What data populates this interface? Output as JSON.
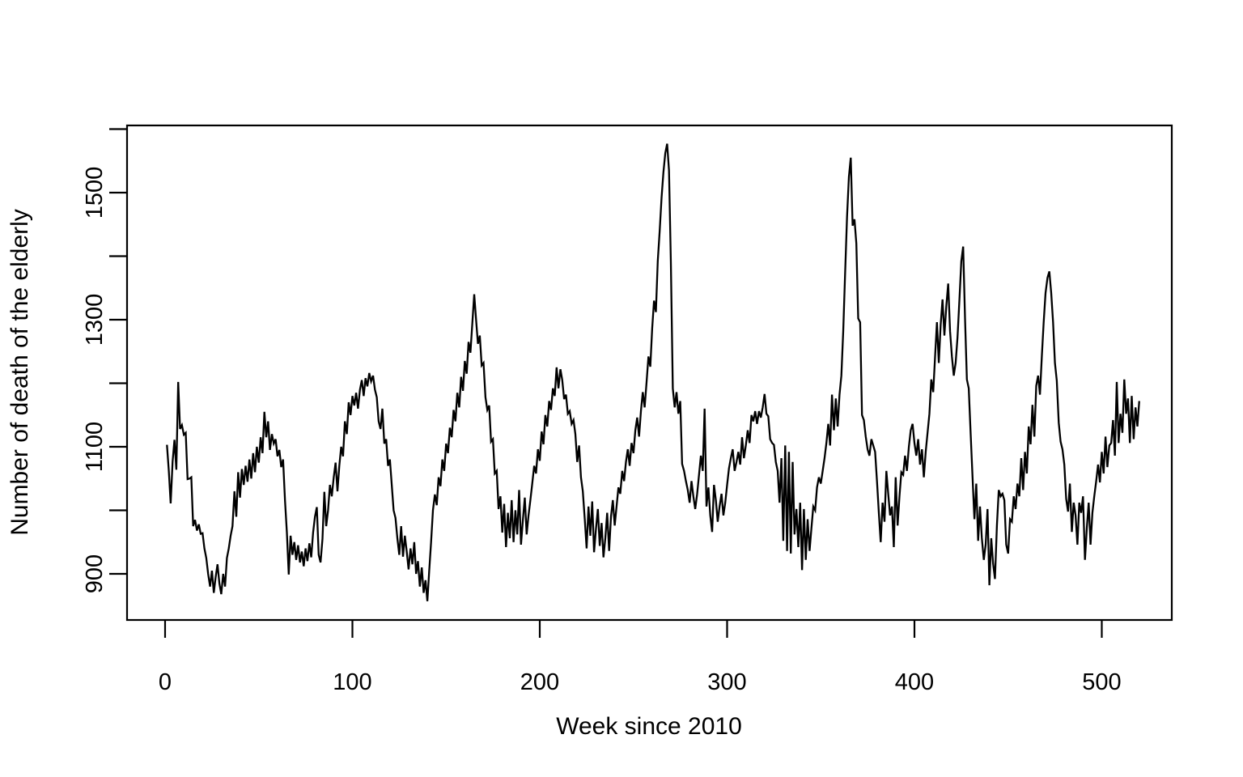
{
  "figure": {
    "background": "#ffffff",
    "line_color": "#000000",
    "axis_color": "#000000",
    "text_color": "#000000"
  },
  "chart_data": {
    "type": "line",
    "title": "",
    "xlabel": "Week since 2010",
    "ylabel": "Number of death of the elderly",
    "legend": "none",
    "grid": "off",
    "xlim": [
      -20,
      541
    ],
    "ylim": [
      824,
      1595
    ],
    "x_tick_values": [
      0,
      100,
      200,
      300,
      400,
      500
    ],
    "x_tick_labels": [
      "0",
      "100",
      "200",
      "300",
      "400",
      "500"
    ],
    "y_tick_values": [
      900,
      1000,
      1100,
      1200,
      1300,
      1400,
      1500,
      1600
    ],
    "y_tick_labels": [
      "900",
      "",
      "1100",
      "",
      "1300",
      "",
      "1500",
      ""
    ],
    "x_start_week": 1,
    "x_step": 1,
    "values": [
      1103,
      1062,
      1011,
      1077,
      1111,
      1064,
      1202,
      1128,
      1134,
      1119,
      1122,
      1049,
      1050,
      1052,
      975,
      985,
      968,
      978,
      963,
      964,
      940,
      925,
      900,
      880,
      905,
      870,
      895,
      915,
      885,
      868,
      900,
      880,
      925,
      940,
      960,
      975,
      1030,
      990,
      1060,
      1020,
      1065,
      1040,
      1070,
      1045,
      1080,
      1050,
      1090,
      1060,
      1100,
      1075,
      1115,
      1090,
      1155,
      1115,
      1140,
      1095,
      1120,
      1105,
      1112,
      1085,
      1095,
      1068,
      1080,
      1015,
      965,
      899,
      960,
      930,
      950,
      922,
      945,
      918,
      935,
      912,
      940,
      920,
      948,
      926,
      965,
      990,
      1005,
      930,
      918,
      955,
      1029,
      975,
      1000,
      1040,
      1022,
      1052,
      1075,
      1030,
      1070,
      1100,
      1085,
      1140,
      1120,
      1170,
      1150,
      1180,
      1165,
      1185,
      1160,
      1190,
      1205,
      1180,
      1208,
      1195,
      1216,
      1203,
      1212,
      1190,
      1178,
      1140,
      1128,
      1160,
      1105,
      1112,
      1070,
      1080,
      1040,
      1000,
      988,
      955,
      930,
      975,
      927,
      960,
      935,
      907,
      940,
      915,
      950,
      900,
      920,
      880,
      910,
      870,
      890,
      857,
      905,
      950,
      1000,
      1025,
      1008,
      1052,
      1038,
      1080,
      1062,
      1105,
      1090,
      1130,
      1115,
      1158,
      1140,
      1185,
      1162,
      1210,
      1188,
      1235,
      1215,
      1265,
      1248,
      1295,
      1340,
      1300,
      1262,
      1275,
      1228,
      1232,
      1178,
      1158,
      1165,
      1108,
      1112,
      1058,
      1062,
      1002,
      1022,
      965,
      1010,
      942,
      996,
      956,
      1016,
      950,
      1000,
      962,
      1032,
      946,
      986,
      1020,
      962,
      992,
      1016,
      1042,
      1070,
      1058,
      1096,
      1078,
      1124,
      1104,
      1150,
      1132,
      1172,
      1158,
      1192,
      1180,
      1225,
      1192,
      1222,
      1205,
      1175,
      1182,
      1152,
      1156,
      1136,
      1142,
      1120,
      1076,
      1102,
      1052,
      1030,
      986,
      940,
      1006,
      960,
      1014,
      934,
      970,
      1002,
      944,
      980,
      926,
      956,
      996,
      936,
      990,
      1016,
      976,
      1006,
      1036,
      1026,
      1062,
      1046,
      1076,
      1096,
      1070,
      1106,
      1090,
      1126,
      1146,
      1116,
      1156,
      1186,
      1162,
      1202,
      1242,
      1226,
      1286,
      1330,
      1312,
      1392,
      1440,
      1492,
      1532,
      1562,
      1577,
      1535,
      1390,
      1192,
      1162,
      1186,
      1152,
      1172,
      1073,
      1062,
      1046,
      1032,
      1012,
      1046,
      1022,
      1002,
      1026,
      1056,
      1086,
      1062,
      1160,
      1006,
      1036,
      992,
      966,
      1040,
      1016,
      982,
      1006,
      1026,
      992,
      1012,
      1040,
      1066,
      1082,
      1096,
      1062,
      1076,
      1092,
      1072,
      1115,
      1082,
      1102,
      1126,
      1106,
      1150,
      1140,
      1156,
      1136,
      1156,
      1146,
      1162,
      1183,
      1152,
      1148,
      1112,
      1106,
      1103,
      1076,
      1062,
      1012,
      1082,
      952,
      1102,
      936,
      1092,
      932,
      1076,
      962,
      1002,
      942,
      1012,
      906,
      1002,
      922,
      986,
      936,
      972,
      1006,
      1000,
      1036,
      1052,
      1042,
      1062,
      1082,
      1106,
      1136,
      1102,
      1182,
      1126,
      1176,
      1132,
      1182,
      1212,
      1282,
      1372,
      1462,
      1525,
      1555,
      1448,
      1458,
      1420,
      1302,
      1296,
      1150,
      1142,
      1116,
      1096,
      1086,
      1112,
      1102,
      1092,
      1046,
      996,
      950,
      1012,
      982,
      1062,
      1026,
      992,
      1006,
      942,
      1052,
      976,
      1022,
      1060,
      1056,
      1086,
      1062,
      1100,
      1126,
      1136,
      1106,
      1086,
      1112,
      1072,
      1096,
      1052,
      1092,
      1122,
      1152,
      1206,
      1186,
      1242,
      1296,
      1232,
      1292,
      1332,
      1275,
      1322,
      1357,
      1282,
      1242,
      1212,
      1232,
      1272,
      1332,
      1392,
      1415,
      1302,
      1206,
      1192,
      1122,
      1052,
      986,
      1042,
      952,
      1006,
      956,
      922,
      946,
      1002,
      882,
      956,
      916,
      892,
      976,
      1032,
      1022,
      1026,
      1016,
      946,
      932,
      986,
      982,
      1022,
      1002,
      1042,
      1022,
      1082,
      1032,
      1092,
      1058,
      1132,
      1104,
      1166,
      1116,
      1196,
      1212,
      1182,
      1242,
      1296,
      1342,
      1366,
      1376,
      1342,
      1296,
      1232,
      1204,
      1138,
      1108,
      1096,
      1072,
      1018,
      998,
      1042,
      966,
      1012,
      992,
      946,
      1012,
      996,
      1022,
      922,
      972,
      1012,
      946,
      996,
      1022,
      1046,
      1072,
      1044,
      1092,
      1058,
      1116,
      1068,
      1102,
      1106,
      1142,
      1086,
      1202,
      1106,
      1152,
      1122,
      1206,
      1152,
      1176,
      1106,
      1180,
      1112,
      1162,
      1132,
      1172
    ]
  }
}
